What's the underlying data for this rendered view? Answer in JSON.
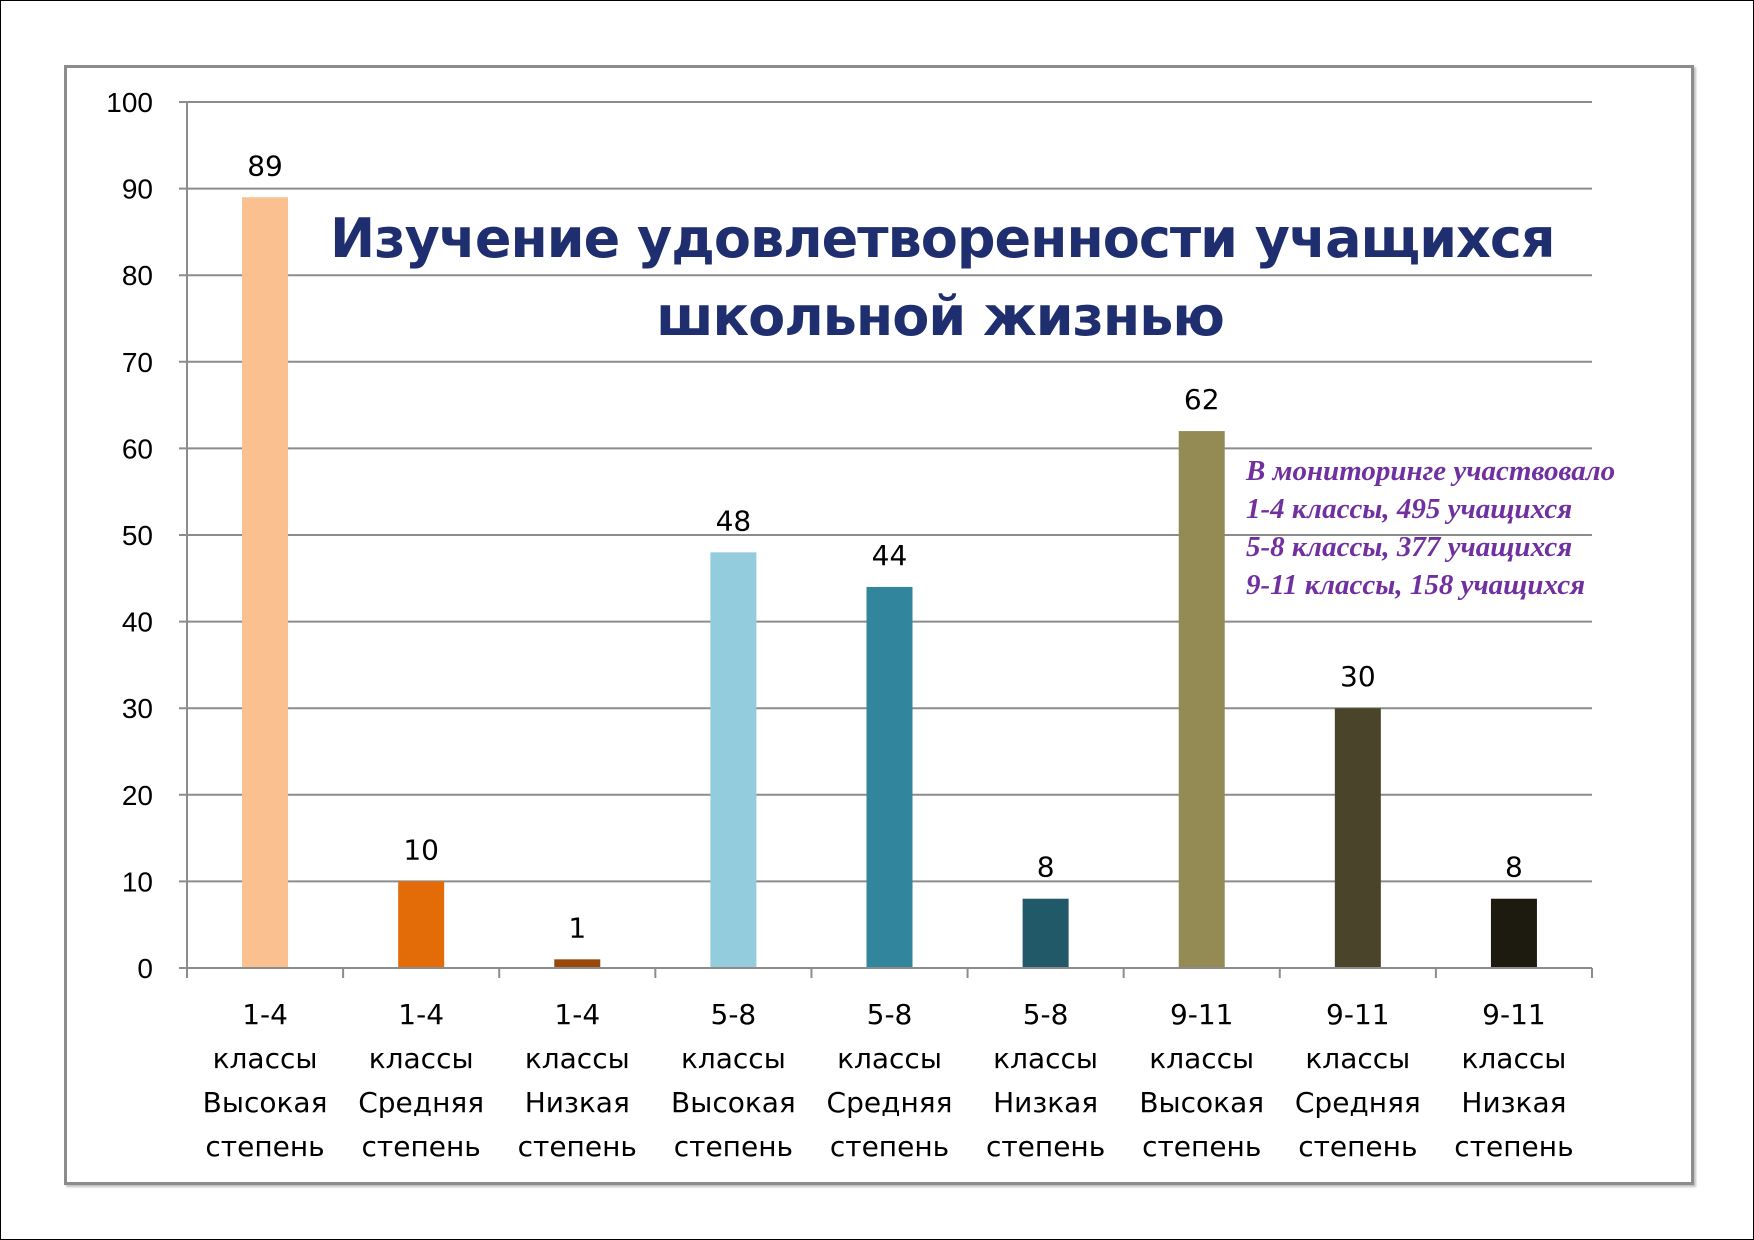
{
  "chart_data": {
    "type": "bar",
    "title": "Изучение удовлетворенности учащихся школьной жизнью",
    "title_lines": [
      "Изучение удовлетворенности учащихся",
      "школьной жизнью"
    ],
    "categories": [
      [
        "1-4",
        "классы",
        "Высокая",
        "степень"
      ],
      [
        "1-4",
        "классы",
        "Средняя",
        "степень"
      ],
      [
        "1-4",
        "классы",
        "Низкая",
        "степень"
      ],
      [
        "5-8",
        "классы",
        "Высокая",
        "степень"
      ],
      [
        "5-8",
        "классы",
        "Средняя",
        "степень"
      ],
      [
        "5-8",
        "классы",
        "Низкая",
        "степень"
      ],
      [
        "9-11",
        "классы",
        "Высокая",
        "степень"
      ],
      [
        "9-11",
        "классы",
        "Средняя",
        "степень"
      ],
      [
        "9-11",
        "классы",
        "Низкая",
        "степень"
      ]
    ],
    "values": [
      89,
      10,
      1,
      48,
      44,
      8,
      62,
      30,
      8
    ],
    "bar_colors": [
      "#fac090",
      "#e36c09",
      "#984807",
      "#93cddd",
      "#31859c",
      "#215968",
      "#948a54",
      "#4a452a",
      "#1d1b10"
    ],
    "ylim": [
      0,
      100
    ],
    "yticks": [
      0,
      10,
      20,
      30,
      40,
      50,
      60,
      70,
      80,
      90,
      100
    ],
    "grid": true,
    "data_labels": true,
    "annotation": [
      "В мониторинге участвовало",
      "1-4 классы, 495 учащихся",
      "5-8 классы, 377 учащихся",
      "9-11 классы, 158 учащихся"
    ],
    "colors": {
      "title": "#1f2e6e",
      "annotation": "#7030a0",
      "grid": "#8c8c8c"
    }
  }
}
